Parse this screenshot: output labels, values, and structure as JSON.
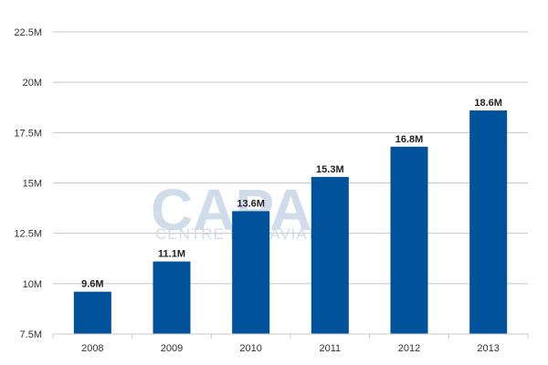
{
  "watermark": {
    "main": "CAPA",
    "sub": "CENTRE FOR AVIATION"
  },
  "colors": {
    "bar": "#00529b",
    "grid": "#c8c8c8",
    "watermark": "#c9d6e8"
  },
  "chart_data": {
    "type": "bar",
    "categories": [
      "2008",
      "2009",
      "2010",
      "2011",
      "2012",
      "2013"
    ],
    "values": [
      9.6,
      11.1,
      13.6,
      15.3,
      16.8,
      18.6
    ],
    "data_labels": [
      "9.6M",
      "11.1M",
      "13.6M",
      "15.3M",
      "16.8M",
      "18.6M"
    ],
    "y_ticks": [
      7.5,
      10,
      12.5,
      15,
      17.5,
      20,
      22.5
    ],
    "y_tick_labels": [
      "7.5M",
      "10M",
      "12.5M",
      "15M",
      "17.5M",
      "20M",
      "22.5M"
    ],
    "ylim": [
      7.5,
      22.5
    ],
    "grid": true,
    "title": "",
    "xlabel": "",
    "ylabel": ""
  }
}
